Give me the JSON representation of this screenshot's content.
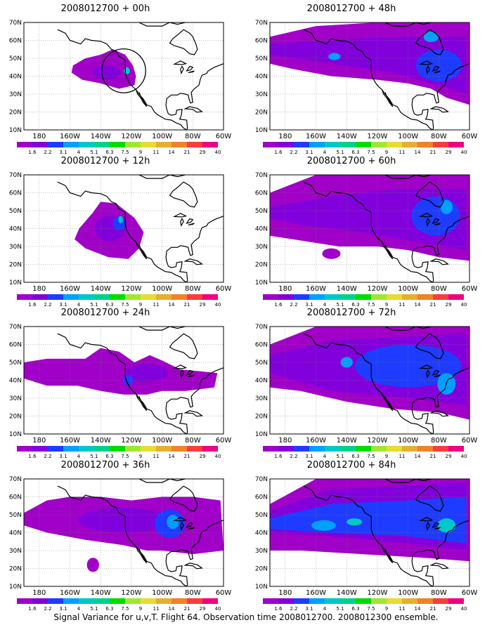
{
  "page": {
    "caption": "Signal Variance for u,v,T. Flight 64. Observation time 2008012700. 2008012300 ensemble."
  },
  "map": {
    "lat_labels": [
      "70N",
      "60N",
      "50N",
      "40N",
      "30N",
      "20N",
      "10N"
    ],
    "lon_labels": [
      "180",
      "160W",
      "140W",
      "120W",
      "100W",
      "80W",
      "60W"
    ],
    "lon_range": [
      -190,
      -60
    ],
    "lat_range": [
      10,
      70
    ]
  },
  "legend": {
    "labels": [
      "1.6",
      "2.2",
      "3.1",
      "4",
      "5.1",
      "6.3",
      "7.5",
      "9",
      "11",
      "14",
      "21",
      "29",
      "40"
    ],
    "colors": [
      "#a000c8",
      "#8200dc",
      "#1e3cff",
      "#00a0ff",
      "#00c8c8",
      "#00d28c",
      "#00dc00",
      "#a0e632",
      "#e6dc32",
      "#e6af2d",
      "#f08228",
      "#fa3c3c",
      "#f00082"
    ]
  },
  "panels": [
    {
      "title": "2008012700 + 00h",
      "lead": "00h",
      "col": 0,
      "row": 0
    },
    {
      "title": "2008012700 + 12h",
      "lead": "12h",
      "col": 0,
      "row": 1
    },
    {
      "title": "2008012700 + 24h",
      "lead": "24h",
      "col": 0,
      "row": 2
    },
    {
      "title": "2008012700 + 36h",
      "lead": "36h",
      "col": 0,
      "row": 3
    },
    {
      "title": "2008012700 + 48h",
      "lead": "48h",
      "col": 1,
      "row": 0
    },
    {
      "title": "2008012700 + 60h",
      "lead": "60h",
      "col": 1,
      "row": 1
    },
    {
      "title": "2008012700 + 72h",
      "lead": "72h",
      "col": 1,
      "row": 2
    },
    {
      "title": "2008012700 + 84h",
      "lead": "84h",
      "col": 1,
      "row": 3
    }
  ],
  "observation_circle": {
    "panel": "00h",
    "center_lon": -125,
    "center_lat": 43,
    "radius_deg": 11
  },
  "colors": {
    "coast": "#000000",
    "grid": "#808080",
    "low": "#a000c8",
    "mid": "#8200dc",
    "blue": "#1e3cff",
    "cyan": "#00a0ff",
    "teal": "#00c8c8"
  }
}
